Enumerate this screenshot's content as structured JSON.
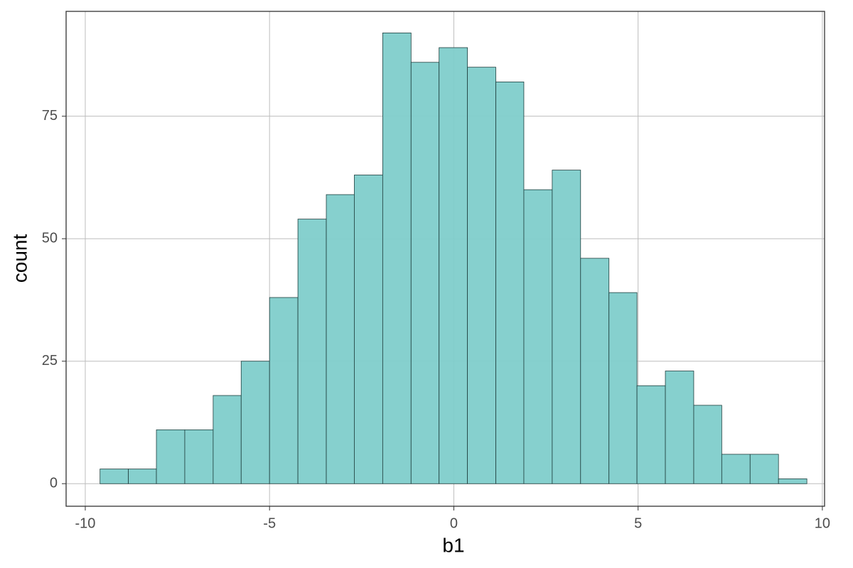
{
  "chart_data": {
    "type": "histogram",
    "x_label": "b1",
    "y_label": "count",
    "bins": [
      -9.6,
      -8.83,
      -8.07,
      -7.3,
      -6.53,
      -5.77,
      -5.0,
      -4.23,
      -3.46,
      -2.7,
      -1.93,
      -1.16,
      -0.4,
      0.37,
      1.14,
      1.9,
      2.67,
      3.44,
      4.21,
      4.97,
      5.74,
      6.51,
      7.27,
      8.04,
      8.81,
      9.58
    ],
    "values": [
      3,
      3,
      11,
      11,
      18,
      25,
      38,
      54,
      59,
      63,
      92,
      86,
      89,
      85,
      82,
      60,
      64,
      46,
      39,
      20,
      23,
      16,
      6,
      6,
      1
    ],
    "color": "#7fcecb",
    "edge_color": "#1f3f3e",
    "xlim": [
      -10.52,
      10.06
    ],
    "xticks": [
      -10,
      -5,
      0,
      5,
      10
    ],
    "ylim": [
      -4.6,
      96.4
    ],
    "yticks": [
      0,
      25,
      50,
      75
    ],
    "grid": true
  }
}
